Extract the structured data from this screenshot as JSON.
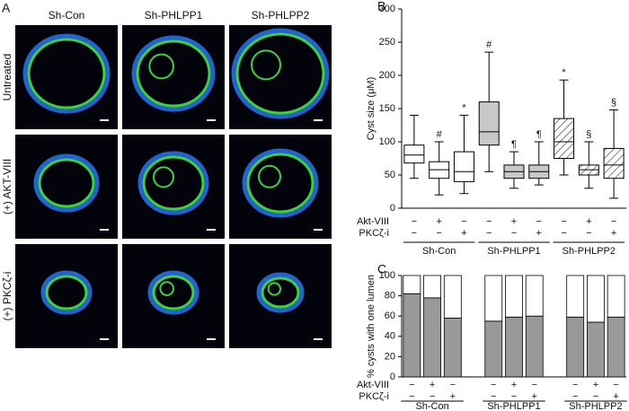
{
  "panel_a": {
    "panel_label": "A",
    "columns": [
      "Sh-Con",
      "Sh-PHLPP1",
      "Sh-PHLPP2"
    ],
    "rows": [
      "Untreated",
      "(+) AKT-VIII",
      "(+) PKCζ-i"
    ]
  },
  "chart_data": [
    {
      "type": "box",
      "panel_label": "B",
      "y_label": "Cyst size (μM)",
      "ylim": [
        0,
        300
      ],
      "yticks": [
        0,
        50,
        100,
        150,
        200,
        250,
        300
      ],
      "boxes": [
        {
          "low": 45,
          "q1": 68,
          "median": 80,
          "q3": 95,
          "high": 140,
          "fill": "#ffffff",
          "hatch": false
        },
        {
          "low": 20,
          "q1": 45,
          "median": 58,
          "q3": 70,
          "high": 100,
          "fill": "#ffffff",
          "hatch": false,
          "annotation": "#"
        },
        {
          "low": 22,
          "q1": 40,
          "median": 55,
          "q3": 85,
          "high": 140,
          "fill": "#ffffff",
          "hatch": false,
          "annotation": "*"
        },
        {
          "low": 55,
          "q1": 95,
          "median": 115,
          "q3": 160,
          "high": 235,
          "fill": "#c8c8c8",
          "hatch": false,
          "annotation": "#"
        },
        {
          "low": 30,
          "q1": 45,
          "median": 55,
          "q3": 65,
          "high": 85,
          "fill": "#c8c8c8",
          "hatch": false,
          "annotation": "¶"
        },
        {
          "low": 35,
          "q1": 45,
          "median": 55,
          "q3": 65,
          "high": 100,
          "fill": "#c8c8c8",
          "hatch": false,
          "annotation": "¶"
        },
        {
          "low": 50,
          "q1": 75,
          "median": 100,
          "q3": 135,
          "high": 193,
          "fill": "#ffffff",
          "hatch": true,
          "annotation": "*"
        },
        {
          "low": 30,
          "q1": 50,
          "median": 58,
          "q3": 65,
          "high": 100,
          "fill": "#ffffff",
          "hatch": true,
          "annotation": "§"
        },
        {
          "low": 15,
          "q1": 45,
          "median": 65,
          "q3": 90,
          "high": 148,
          "fill": "#ffffff",
          "hatch": true,
          "annotation": "§"
        }
      ],
      "treatments": [
        {
          "label": "Akt-VIII",
          "signs": [
            "−",
            "+",
            "−",
            "−",
            "+",
            "−",
            "−",
            "+",
            "−"
          ]
        },
        {
          "label": "PKCζ-i",
          "signs": [
            "−",
            "−",
            "+",
            "−",
            "−",
            "+",
            "−",
            "−",
            "+"
          ]
        }
      ],
      "groups": [
        "Sh-Con",
        "Sh-PHLPP1",
        "Sh-PHLPP2"
      ]
    },
    {
      "type": "stacked_bar",
      "panel_label": "C",
      "y_label": "% cysts with one lumen",
      "ylim": [
        0,
        100
      ],
      "yticks": [
        0,
        20,
        40,
        60,
        80,
        100
      ],
      "series": [
        {
          "color": "#999999",
          "values": [
            82,
            78,
            58,
            55,
            59,
            60,
            59,
            54,
            59
          ]
        },
        {
          "color": "#ffffff",
          "values": [
            18,
            22,
            42,
            45,
            41,
            40,
            41,
            46,
            41
          ]
        }
      ],
      "treatments": [
        {
          "label": "Akt-VIII",
          "signs": [
            "−",
            "+",
            "−",
            "−",
            "+",
            "−",
            "−",
            "+",
            "−"
          ]
        },
        {
          "label": "PKCζ-i",
          "signs": [
            "−",
            "−",
            "+",
            "−",
            "−",
            "+",
            "−",
            "−",
            "+"
          ]
        }
      ],
      "groups": [
        "Sh-Con",
        "Sh-PHLPP1",
        "Sh-PHLPP2"
      ]
    }
  ]
}
